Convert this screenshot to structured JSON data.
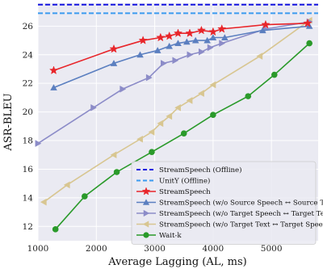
{
  "chart_data": {
    "type": "line",
    "title": "",
    "xlabel": "Average Lagging (AL, ms)",
    "ylabel": "ASR-BLEU",
    "xlim": [
      1000,
      5800
    ],
    "ylim": [
      11,
      27.6
    ],
    "xticks": [
      1000,
      2000,
      3000,
      4000,
      5000
    ],
    "yticks": [
      12,
      14,
      16,
      18,
      20,
      22,
      24,
      26
    ],
    "grid": true,
    "legend_position": "bottom-right",
    "reference_lines": [
      {
        "name": "StreamSpeech (Offline)",
        "y": 27.5,
        "color": "#1515e0",
        "style": "dashed"
      },
      {
        "name": "UnitY (Offline)",
        "y": 26.9,
        "color": "#3a9af0",
        "style": "dashed"
      }
    ],
    "series": [
      {
        "name": "StreamSpeech",
        "color": "#e8252a",
        "marker": "star",
        "points": [
          [
            1270,
            22.9
          ],
          [
            2300,
            24.4
          ],
          [
            2800,
            25.0
          ],
          [
            3100,
            25.2
          ],
          [
            3250,
            25.3
          ],
          [
            3400,
            25.5
          ],
          [
            3600,
            25.5
          ],
          [
            3800,
            25.7
          ],
          [
            4000,
            25.6
          ],
          [
            4150,
            25.8
          ],
          [
            4900,
            26.1
          ],
          [
            5620,
            26.2
          ]
        ]
      },
      {
        "name": "StreamSpeech (w/o Source Speech ↔ Source Text)",
        "color": "#5b7fc0",
        "marker": "triangle-up",
        "points": [
          [
            1270,
            21.7
          ],
          [
            2300,
            23.4
          ],
          [
            2750,
            24.0
          ],
          [
            3050,
            24.3
          ],
          [
            3250,
            24.6
          ],
          [
            3400,
            24.8
          ],
          [
            3550,
            24.9
          ],
          [
            3700,
            25.0
          ],
          [
            3900,
            25.0
          ],
          [
            4000,
            25.2
          ],
          [
            4200,
            25.2
          ],
          [
            4850,
            25.7
          ],
          [
            5650,
            26.0
          ]
        ]
      },
      {
        "name": "StreamSpeech (w/o Target Speech ↔ Target Text)",
        "color": "#8c8cc8",
        "marker": "triangle-right",
        "points": [
          [
            1000,
            17.8
          ],
          [
            1950,
            20.3
          ],
          [
            2450,
            21.6
          ],
          [
            2900,
            22.4
          ],
          [
            3150,
            23.4
          ],
          [
            3350,
            23.6
          ],
          [
            3600,
            24.0
          ],
          [
            3800,
            24.2
          ],
          [
            3950,
            24.5
          ],
          [
            4150,
            24.8
          ],
          [
            4900,
            25.8
          ],
          [
            5650,
            26.3
          ]
        ]
      },
      {
        "name": "StreamSpeech (w/o Target Text ↔ Target Speech)",
        "color": "#d8c691",
        "marker": "triangle-left",
        "points": [
          [
            1100,
            13.7
          ],
          [
            1500,
            14.9
          ],
          [
            2300,
            17.0
          ],
          [
            2750,
            18.1
          ],
          [
            2950,
            18.6
          ],
          [
            3100,
            19.2
          ],
          [
            3250,
            19.7
          ],
          [
            3400,
            20.3
          ],
          [
            3600,
            20.8
          ],
          [
            3800,
            21.3
          ],
          [
            4000,
            21.9
          ],
          [
            4800,
            23.9
          ],
          [
            5650,
            26.4
          ]
        ]
      },
      {
        "name": "Wait-k",
        "color": "#2a9a2a",
        "marker": "circle",
        "points": [
          [
            1300,
            11.8
          ],
          [
            1800,
            14.1
          ],
          [
            2350,
            15.8
          ],
          [
            2950,
            17.2
          ],
          [
            3500,
            18.5
          ],
          [
            4000,
            19.8
          ],
          [
            4600,
            21.1
          ],
          [
            5050,
            22.6
          ],
          [
            5650,
            24.8
          ]
        ]
      }
    ]
  }
}
